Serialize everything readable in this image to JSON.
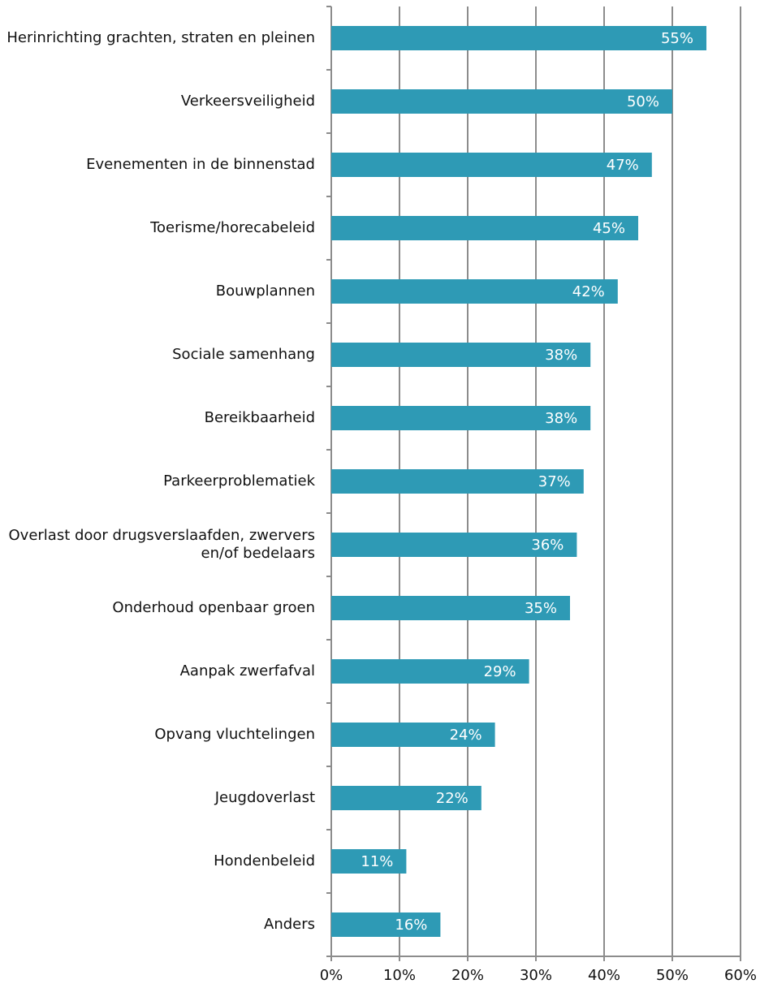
{
  "chart_data": {
    "type": "bar",
    "orientation": "horizontal",
    "categories": [
      "Herinrichting grachten, straten en pleinen",
      "Verkeersveiligheid",
      "Evenementen in de binnenstad",
      "Toerisme/horecabeleid",
      "Bouwplannen",
      "Sociale samenhang",
      "Bereikbaarheid",
      "Parkeerproblematiek",
      "Overlast door drugsverslaafden, zwervers en/of bedelaars",
      "Onderhoud openbaar groen",
      "Aanpak zwerfafval",
      "Opvang vluchtelingen",
      "Jeugdoverlast",
      "Hondenbeleid",
      "Anders"
    ],
    "values": [
      55,
      50,
      47,
      45,
      42,
      38,
      38,
      37,
      36,
      35,
      29,
      24,
      22,
      11,
      16
    ],
    "value_labels": [
      "55%",
      "50%",
      "47%",
      "45%",
      "42%",
      "38%",
      "38%",
      "37%",
      "36%",
      "35%",
      "29%",
      "24%",
      "22%",
      "11%",
      "16%"
    ],
    "color": "#2e9ab5",
    "xlim": [
      0,
      60
    ],
    "xticks": [
      {
        "value": 0,
        "label": "0%"
      },
      {
        "value": 10,
        "label": "10%"
      },
      {
        "value": 20,
        "label": "20%"
      },
      {
        "value": 30,
        "label": "30%"
      },
      {
        "value": 40,
        "label": "40%"
      },
      {
        "value": 50,
        "label": "50%"
      },
      {
        "value": 60,
        "label": "60%"
      }
    ],
    "grid": true
  }
}
